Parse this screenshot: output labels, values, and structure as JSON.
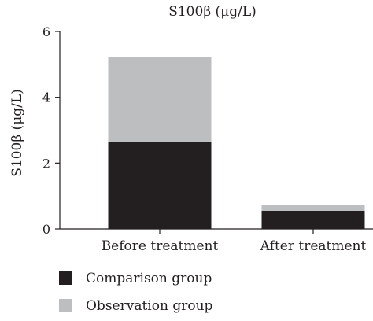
{
  "colors": {
    "comparison": "#231f20",
    "observation": "#bcbec0",
    "axis": "#231f20"
  },
  "chart_data": {
    "type": "bar",
    "stacked": true,
    "title": "S100β (μg/L)",
    "xlabel": "",
    "ylabel": "S100β (μg/L)",
    "ylim": [
      0,
      6
    ],
    "yticks": [
      0,
      2,
      4,
      6
    ],
    "grid": false,
    "legend_position": "bottom-left",
    "categories": [
      "Before treatment",
      "After treatment"
    ],
    "series": [
      {
        "name": "Comparison group",
        "values": [
          2.65,
          0.55
        ]
      },
      {
        "name": "Observation group",
        "values": [
          2.58,
          0.17
        ]
      }
    ]
  }
}
